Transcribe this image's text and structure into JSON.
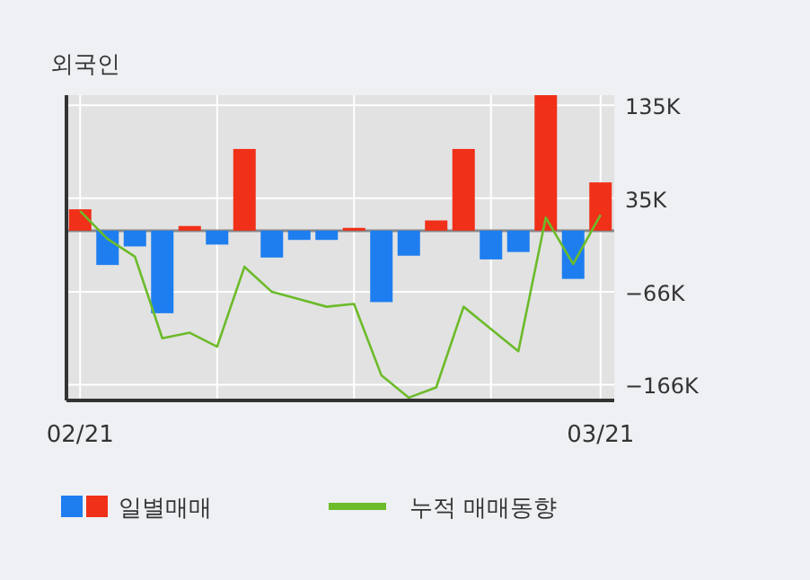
{
  "chart_data": {
    "type": "bar",
    "title": "외국인",
    "categories": [
      "02/21",
      null,
      null,
      null,
      null,
      null,
      null,
      null,
      null,
      null,
      null,
      null,
      null,
      null,
      null,
      null,
      null,
      null,
      null,
      "03/21"
    ],
    "series": [
      {
        "name": "일별매매",
        "colors": [
          "#f03018",
          "#1e7ef0",
          "#1e7ef0",
          "#1e7ef0",
          "#f03018",
          "#1e7ef0",
          "#f03018",
          "#1e7ef0",
          "#1e7ef0",
          "#1e7ef0",
          "#f03018",
          "#1e7ef0",
          "#1e7ef0",
          "#f03018",
          "#f03018",
          "#1e7ef0",
          "#1e7ef0",
          "#f03018",
          "#1e7ef0",
          "#f03018"
        ],
        "values": [
          23000,
          -37000,
          -17000,
          -89000,
          5000,
          -15000,
          88000,
          -29000,
          -10000,
          -10000,
          3000,
          -77000,
          -27000,
          11000,
          88000,
          -31000,
          -23000,
          146000,
          -52000,
          52000
        ]
      },
      {
        "name": "누적 매매동향",
        "type": "line",
        "color": "#6cbb2a",
        "values": [
          21000,
          -9000,
          -28000,
          -116000,
          -110000,
          -125000,
          -39000,
          -66000,
          -74000,
          -82000,
          -79000,
          -156000,
          -180000,
          -169000,
          -82000,
          -106000,
          -130000,
          14000,
          -36000,
          17000
        ]
      }
    ],
    "ylim": [
      -183000,
      146000
    ],
    "yticks": [
      {
        "value": 135000,
        "label": "135K"
      },
      {
        "value": 35000,
        "label": "35K"
      },
      {
        "value": -66000,
        "label": "−66K"
      },
      {
        "value": -166000,
        "label": "−166K"
      }
    ],
    "grid": true,
    "legend": "bottom"
  }
}
